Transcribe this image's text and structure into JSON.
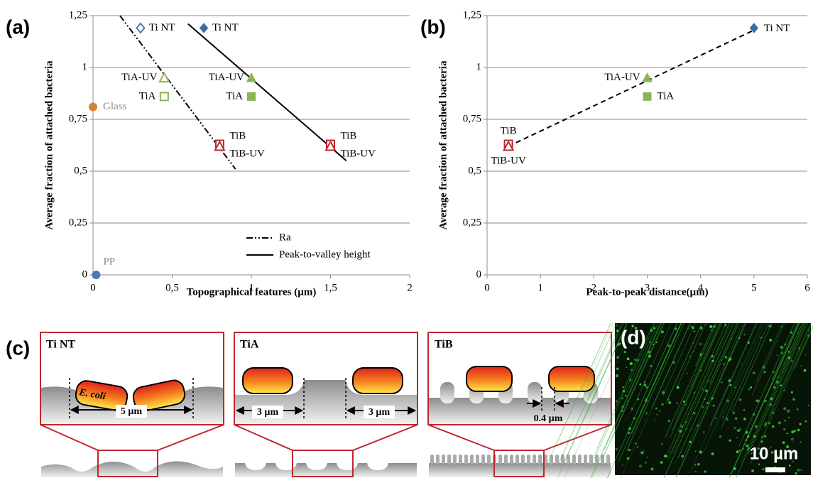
{
  "panel_labels": [
    "(a)",
    "(b)",
    "(c)",
    "(d)"
  ],
  "chart_data": [
    {
      "type": "scatter",
      "x_label": "Topographical features (µm)",
      "y_label": "Average fraction of attached bacteria",
      "xlim": [
        0,
        2
      ],
      "xticks": [
        0,
        {
          "value": 0.5,
          "label": "0,5"
        },
        1,
        {
          "value": 1.5,
          "label": "1,5"
        },
        2
      ],
      "ylim": [
        0,
        1.25
      ],
      "yticks": [
        0,
        {
          "value": 0.25,
          "label": "0,25"
        },
        {
          "value": 0.5,
          "label": "0,5"
        },
        {
          "value": 0.75,
          "label": "0,75"
        },
        1,
        {
          "value": 1.25,
          "label": "1,25"
        }
      ],
      "grid": "y",
      "legend": "lower right",
      "points": [
        {
          "label": "Ti NT",
          "x": 0.3,
          "y": 1.19,
          "shape": "diamond",
          "filled": false,
          "color": "#4a7ab8"
        },
        {
          "label": "Ti NT",
          "x": 0.7,
          "y": 1.19,
          "shape": "diamond",
          "filled": true,
          "color": "#3f6aa8"
        },
        {
          "label": "TiA-UV",
          "x": 0.45,
          "y": 0.95,
          "shape": "triangle",
          "filled": false,
          "color": "#8db354"
        },
        {
          "label": "TiA",
          "x": 0.45,
          "y": 0.86,
          "shape": "square",
          "filled": false,
          "color": "#8db354"
        },
        {
          "label": "TiA-UV",
          "x": 1,
          "y": 0.95,
          "shape": "triangle",
          "filled": true,
          "color": "#8db354"
        },
        {
          "label": "TiA",
          "x": 1,
          "y": 0.86,
          "shape": "square",
          "filled": true,
          "color": "#8db354"
        },
        {
          "label": "TiB",
          "x": 0.8,
          "y": 0.63,
          "shape": "square",
          "filled": false,
          "color": "#c0272d"
        },
        {
          "label": "TiB-UV",
          "x": 0.8,
          "y": 0.62,
          "shape": "triangle",
          "filled": false,
          "color": "#c0272d"
        },
        {
          "label": "TiB",
          "x": 1.5,
          "y": 0.63,
          "shape": "square",
          "filled": false,
          "color": "#c0272d"
        },
        {
          "label": "TiB-UV",
          "x": 1.5,
          "y": 0.62,
          "shape": "triangle",
          "filled": false,
          "color": "#c0272d"
        },
        {
          "label": "Glass",
          "x": 0,
          "y": 0.81,
          "shape": "circle",
          "filled": true,
          "color": "#d2833a",
          "label_color": "#888888"
        },
        {
          "label": "PP",
          "x": 0.02,
          "y": 0,
          "shape": "circle",
          "filled": true,
          "color": "#4a7ab8",
          "label_color": "#888888"
        }
      ],
      "lines": [
        {
          "name": "Ra",
          "dash": "dash-dot-dot",
          "x": [
            0.17,
            0.9
          ],
          "y": [
            1.25,
            0.51
          ]
        },
        {
          "name": "Peak-to-valley height",
          "dash": "solid",
          "x": [
            0.6,
            1.6
          ],
          "y": [
            1.21,
            0.55
          ]
        }
      ]
    },
    {
      "type": "scatter",
      "x_label": "Peak-to-peak distance(µm)",
      "y_label": "Average fraction of attached bacteria",
      "xlim": [
        0,
        6
      ],
      "xticks": [
        0,
        1,
        2,
        3,
        4,
        5,
        6
      ],
      "ylim": [
        0,
        1.25
      ],
      "yticks": [
        0,
        {
          "value": 0.25,
          "label": "0,25"
        },
        {
          "value": 0.5,
          "label": "0,5"
        },
        {
          "value": 0.75,
          "label": "0,75"
        },
        1,
        {
          "value": 1.25,
          "label": "1,25"
        }
      ],
      "grid": "y",
      "points": [
        {
          "label": "Ti NT",
          "x": 5,
          "y": 1.19,
          "shape": "diamond",
          "filled": true,
          "color": "#3f6aa8"
        },
        {
          "label": "TiA-UV",
          "x": 3,
          "y": 0.95,
          "shape": "triangle",
          "filled": true,
          "color": "#8db354"
        },
        {
          "label": "TiA",
          "x": 3,
          "y": 0.86,
          "shape": "square",
          "filled": true,
          "color": "#8db354"
        },
        {
          "label": "TiB",
          "x": 0.4,
          "y": 0.63,
          "shape": "square",
          "filled": false,
          "color": "#c0272d"
        },
        {
          "label": "TiB-UV",
          "x": 0.4,
          "y": 0.62,
          "shape": "triangle",
          "filled": false,
          "color": "#c0272d"
        }
      ],
      "lines": [
        {
          "dash": "dashed",
          "x": [
            0.4,
            5
          ],
          "y": [
            0.62,
            1.18
          ]
        }
      ]
    }
  ],
  "diagram": {
    "panels": [
      {
        "title": "Ti NT",
        "bacterium": "E. coli",
        "dimensions": [
          "5 µm"
        ]
      },
      {
        "title": "TiA",
        "dimensions": [
          "3 µm",
          "3 µm"
        ]
      },
      {
        "title": "TiB",
        "dimensions": [
          "0.4 µm"
        ]
      }
    ]
  },
  "micrograph": {
    "scale_bar": "10 µm"
  }
}
